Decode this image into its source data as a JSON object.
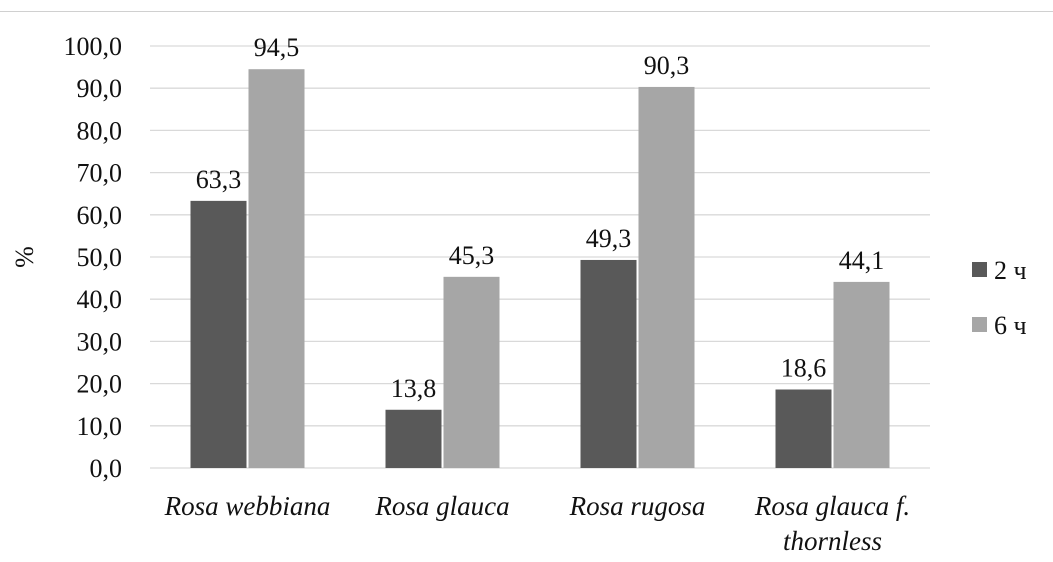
{
  "chart_data": {
    "type": "bar",
    "categories": [
      "Rosa webbiana",
      "Rosa glauca",
      "Rosa rugosa",
      "Rosa glauca f. thornless"
    ],
    "series": [
      {
        "name": "2 ч",
        "values": [
          63.3,
          13.8,
          49.3,
          18.6
        ],
        "labels": [
          "63,3",
          "13,8",
          "49,3",
          "18,6"
        ],
        "color": "#595959"
      },
      {
        "name": "6 ч",
        "values": [
          94.5,
          45.3,
          90.3,
          44.1
        ],
        "labels": [
          "94,5",
          "45,3",
          "90,3",
          "44,1"
        ],
        "color": "#a6a6a6"
      }
    ],
    "yticks": [
      0,
      10,
      20,
      30,
      40,
      50,
      60,
      70,
      80,
      90,
      100
    ],
    "ytick_labels": [
      "0,0",
      "10,0",
      "20,0",
      "30,0",
      "40,0",
      "50,0",
      "60,0",
      "70,0",
      "80,0",
      "90,0",
      "100,0"
    ],
    "ylabel": "%",
    "xlabel": "",
    "title": "",
    "ylim": [
      0,
      100
    ],
    "grid": true,
    "legend_position": "right",
    "gridline_color": "#d9d9d9"
  }
}
